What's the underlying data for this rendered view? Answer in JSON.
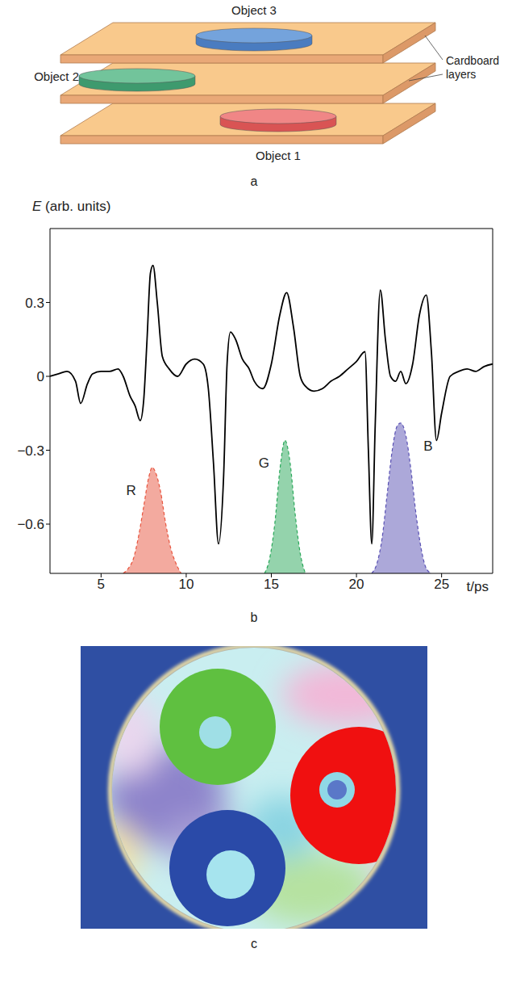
{
  "panel_labels": [
    "a",
    "b",
    "c"
  ],
  "diagram": {
    "objects": [
      "Object 1",
      "Object 2",
      "Object 3"
    ],
    "layers_label": "Cardboard layers"
  },
  "chart_data": {
    "type": "line",
    "y_label": "E (arb. units)",
    "x_label": "t/ps",
    "xlim": [
      2,
      28
    ],
    "xticks": [
      5,
      10,
      15,
      20,
      25
    ],
    "ylim": [
      -0.8,
      0.6
    ],
    "yticks": [
      0.3,
      0,
      {
        "value": -0.3,
        "label": "−0.3"
      },
      {
        "value": -0.6,
        "label": "−0.6"
      }
    ],
    "grid": false,
    "series": [
      {
        "type": "line",
        "color": "#000000",
        "line_style": "solid",
        "x": [
          2,
          2.5,
          3,
          3.5,
          3.8,
          4.2,
          4.5,
          5,
          5.5,
          6,
          6.3,
          6.7,
          7,
          7.3,
          7.5,
          7.7,
          7.9,
          8.05,
          8.3,
          8.6,
          9,
          9.5,
          10,
          10.5,
          11,
          11.3,
          11.6,
          11.9,
          12.2,
          12.4,
          12.6,
          12.9,
          13.3,
          13.7,
          14,
          14.5,
          15,
          15.5,
          15.9,
          16.3,
          16.7,
          17,
          17.5,
          18,
          18.5,
          19,
          19.5,
          20,
          20.5,
          20.7,
          20.9,
          21.1,
          21.4,
          21.7,
          22,
          22.3,
          22.6,
          22.9,
          23.3,
          23.7,
          24.1,
          24.4,
          24.7,
          25,
          25.5,
          26,
          26.5,
          27,
          27.5,
          28
        ],
        "values": [
          0,
          0.01,
          0.02,
          -0.02,
          -0.11,
          -0.03,
          0.01,
          0.02,
          0.02,
          0.03,
          0,
          -0.08,
          -0.12,
          -0.18,
          -0.1,
          0.15,
          0.42,
          0.45,
          0.3,
          0.08,
          0.03,
          0,
          0.05,
          0.07,
          0.05,
          -0.05,
          -0.35,
          -0.68,
          -0.4,
          0.05,
          0.18,
          0.15,
          0.07,
          0.03,
          -0.02,
          -0.05,
          0.05,
          0.25,
          0.34,
          0.2,
          0,
          -0.04,
          -0.06,
          -0.05,
          -0.02,
          0,
          0.03,
          0.06,
          0.1,
          -0.3,
          -0.68,
          -0.2,
          0.35,
          0.15,
          0,
          -0.02,
          0.02,
          -0.03,
          0.05,
          0.25,
          0.33,
          0.1,
          -0.26,
          -0.15,
          0,
          0.02,
          0.03,
          0.02,
          0.04,
          0.05
        ]
      },
      {
        "name": "R",
        "type": "area",
        "color": "#e8553f",
        "line_style": "dashed",
        "x": [
          6.3,
          6.6,
          6.9,
          7.2,
          7.5,
          7.8,
          8.0,
          8.2,
          8.5,
          8.8,
          9.1,
          9.4,
          9.7
        ],
        "values": [
          -0.8,
          -0.78,
          -0.74,
          -0.65,
          -0.53,
          -0.41,
          -0.37,
          -0.39,
          -0.47,
          -0.6,
          -0.7,
          -0.76,
          -0.8
        ]
      },
      {
        "name": "G",
        "type": "area",
        "color": "#2aa85a",
        "line_style": "dashed",
        "x": [
          14.6,
          14.9,
          15.2,
          15.5,
          15.8,
          16.1,
          16.4,
          16.7,
          17.0
        ],
        "values": [
          -0.8,
          -0.74,
          -0.6,
          -0.38,
          -0.26,
          -0.35,
          -0.56,
          -0.72,
          -0.8
        ]
      },
      {
        "name": "B",
        "type": "area",
        "color": "#5a52b4",
        "line_style": "dashed",
        "x": [
          20.9,
          21.2,
          21.5,
          21.8,
          22.1,
          22.4,
          22.6,
          22.9,
          23.2,
          23.5,
          23.8,
          24.1,
          24.4
        ],
        "values": [
          -0.8,
          -0.76,
          -0.66,
          -0.48,
          -0.3,
          -0.2,
          -0.19,
          -0.24,
          -0.38,
          -0.56,
          -0.7,
          -0.78,
          -0.8
        ]
      }
    ]
  }
}
